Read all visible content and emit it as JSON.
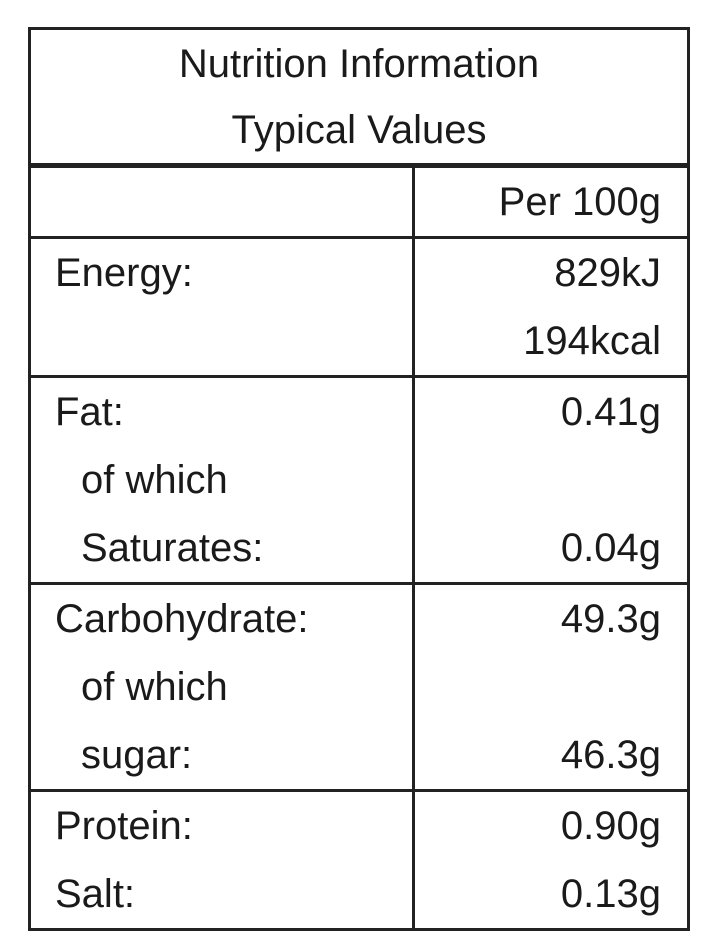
{
  "header": {
    "title": "Nutrition Information",
    "subtitle": "Typical Values"
  },
  "column_header": "Per 100g",
  "rows": [
    [
      {
        "label": "Energy:",
        "value": "829kJ"
      },
      {
        "value": "194kcal"
      }
    ],
    [
      {
        "label": "Fat:",
        "value": "0.41g"
      },
      {
        "label": "of which",
        "indent": true
      },
      {
        "label": "Saturates:",
        "value": "0.04g",
        "indent": true
      }
    ],
    [
      {
        "label": "Carbohydrate:",
        "value": "49.3g"
      },
      {
        "label": "of which",
        "indent": true
      },
      {
        "label": "sugar:",
        "value": "46.3g",
        "indent": true
      }
    ],
    [
      {
        "label": "Protein:",
        "value": "0.90g"
      },
      {
        "label": "Salt:",
        "value": "0.13g"
      }
    ]
  ]
}
